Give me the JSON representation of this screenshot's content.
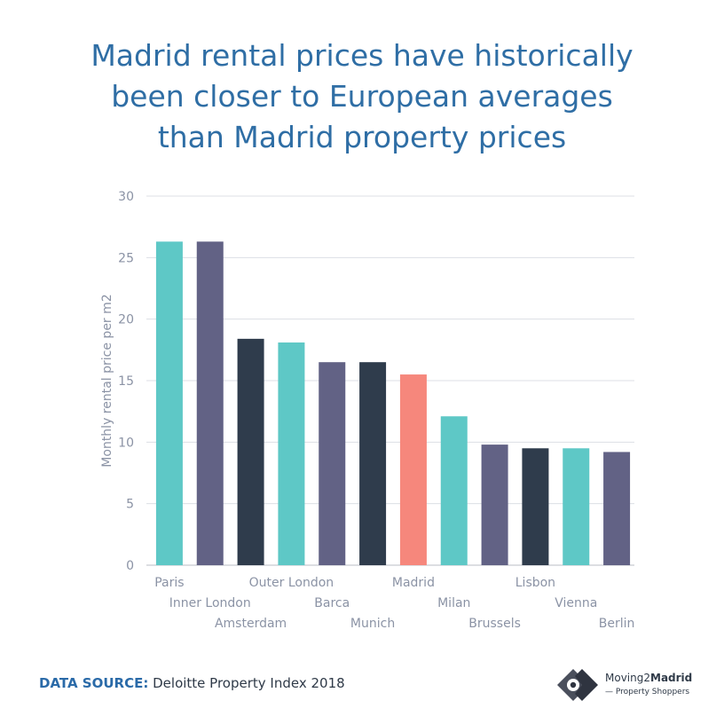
{
  "title_lines": [
    "Madrid rental prices have historically",
    "been closer to European averages",
    "than Madrid property prices"
  ],
  "chart_data": {
    "type": "bar",
    "title": "Madrid rental prices have historically been closer to European averages than Madrid property prices",
    "xlabel": "",
    "ylabel": "Monthly rental price per m2",
    "ylim": [
      0,
      30
    ],
    "yticks": [
      0,
      5,
      10,
      15,
      20,
      25,
      30
    ],
    "grid": true,
    "categories": [
      "Paris",
      "Inner London",
      "Amsterdam",
      "Outer London",
      "Barca",
      "Munich",
      "Madrid",
      "Milan",
      "Brussels",
      "Lisbon",
      "Vienna",
      "Berlin"
    ],
    "values": [
      26.3,
      26.3,
      18.4,
      18.1,
      16.5,
      16.5,
      15.5,
      12.1,
      9.8,
      9.5,
      9.5,
      9.2
    ],
    "colors": [
      "#5ec8c6",
      "#626285",
      "#2f3c4c",
      "#5ec8c6",
      "#626285",
      "#2f3c4c",
      "#f6877c",
      "#5ec8c6",
      "#626285",
      "#2f3c4c",
      "#5ec8c6",
      "#626285"
    ]
  },
  "colors": {
    "title": "#2f6ea5",
    "axis_text": "#8b93a5",
    "grid": "#dcdfe4",
    "source_label": "#2a6aa8"
  },
  "footer": {
    "source_label": "DATA SOURCE:",
    "source_text": "Deloitte Property Index 2018"
  },
  "logo": {
    "brand_prefix": "Moving2",
    "brand_suffix": "Madrid",
    "tagline": "— Property Shoppers"
  }
}
